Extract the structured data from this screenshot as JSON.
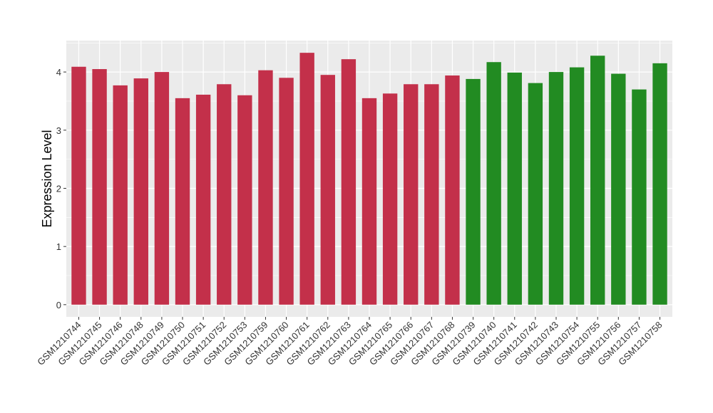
{
  "chart_data": {
    "type": "bar",
    "title": "",
    "xlabel": "",
    "ylabel": "Expression Level",
    "ylim": [
      -0.21,
      4.54
    ],
    "yticks": [
      0,
      1,
      2,
      3,
      4
    ],
    "grid": true,
    "legend": "none",
    "categories": [
      "GSM1210744",
      "GSM1210745",
      "GSM1210746",
      "GSM1210748",
      "GSM1210749",
      "GSM1210750",
      "GSM1210751",
      "GSM1210752",
      "GSM1210753",
      "GSM1210759",
      "GSM1210760",
      "GSM1210761",
      "GSM1210762",
      "GSM1210763",
      "GSM1210764",
      "GSM1210765",
      "GSM1210766",
      "GSM1210767",
      "GSM1210768",
      "GSM1210739",
      "GSM1210740",
      "GSM1210741",
      "GSM1210742",
      "GSM1210743",
      "GSM1210754",
      "GSM1210755",
      "GSM1210756",
      "GSM1210757",
      "GSM1210758"
    ],
    "values": [
      4.09,
      4.05,
      3.77,
      3.89,
      4.0,
      3.55,
      3.61,
      3.79,
      3.6,
      4.03,
      3.9,
      4.33,
      3.95,
      4.22,
      3.55,
      3.63,
      3.79,
      3.79,
      3.94,
      3.88,
      4.17,
      3.99,
      3.81,
      4.0,
      4.08,
      4.28,
      3.97,
      3.7,
      4.15
    ],
    "groups": [
      "a",
      "a",
      "a",
      "a",
      "a",
      "a",
      "a",
      "a",
      "a",
      "a",
      "a",
      "a",
      "a",
      "a",
      "a",
      "a",
      "a",
      "a",
      "a",
      "b",
      "b",
      "b",
      "b",
      "b",
      "b",
      "b",
      "b",
      "b",
      "b"
    ],
    "colors": {
      "a": "#C3304A",
      "b": "#228B22"
    }
  }
}
